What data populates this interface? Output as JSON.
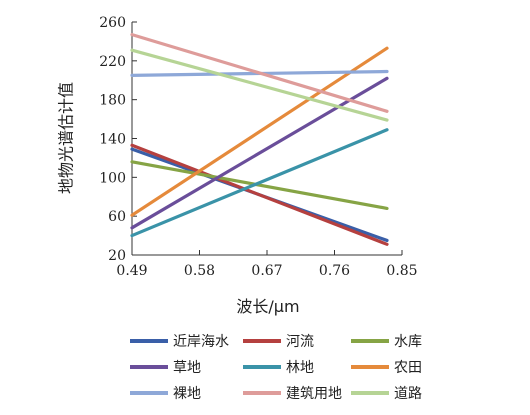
{
  "chart_data": {
    "type": "line",
    "title": "",
    "xlabel": "波长/μm",
    "ylabel": "地物光谱估计值",
    "xlim": [
      0.49,
      0.85
    ],
    "ylim": [
      20,
      260
    ],
    "x_ticks": [
      "0.49",
      "0.58",
      "0.67",
      "0.76",
      "0.85"
    ],
    "y_ticks": [
      "20",
      "60",
      "100",
      "140",
      "180",
      "220",
      "260"
    ],
    "grid": false,
    "legend_position": "bottom",
    "series": [
      {
        "name": "近岸海水",
        "color": "#3a5fa8",
        "x": [
          0.49,
          0.83
        ],
        "y": [
          129,
          35
        ]
      },
      {
        "name": "河流",
        "color": "#b5403f",
        "x": [
          0.49,
          0.83
        ],
        "y": [
          133,
          31
        ]
      },
      {
        "name": "水库",
        "color": "#86a445",
        "x": [
          0.49,
          0.83
        ],
        "y": [
          116,
          68
        ]
      },
      {
        "name": "草地",
        "color": "#6a4e9a",
        "x": [
          0.49,
          0.83
        ],
        "y": [
          48,
          202
        ]
      },
      {
        "name": "林地",
        "color": "#3a93a8",
        "x": [
          0.49,
          0.83
        ],
        "y": [
          40,
          149
        ]
      },
      {
        "name": "农田",
        "color": "#e58a3b",
        "x": [
          0.49,
          0.83
        ],
        "y": [
          61,
          233
        ]
      },
      {
        "name": "裸地",
        "color": "#8ea8d8",
        "x": [
          0.49,
          0.83
        ],
        "y": [
          205,
          209
        ]
      },
      {
        "name": "建筑用地",
        "color": "#de9c9a",
        "x": [
          0.49,
          0.83
        ],
        "y": [
          247,
          168
        ]
      },
      {
        "name": "道路",
        "color": "#b6d495",
        "x": [
          0.49,
          0.83
        ],
        "y": [
          231,
          159
        ]
      }
    ]
  }
}
